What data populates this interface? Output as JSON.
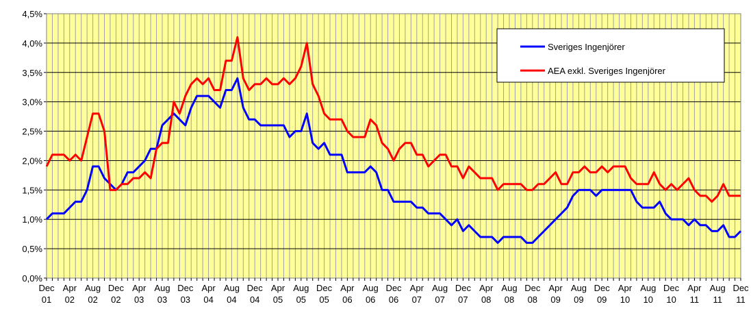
{
  "chart_data": {
    "type": "line",
    "categories": [
      "Dec 01",
      null,
      null,
      null,
      "Apr 02",
      null,
      null,
      null,
      "Aug 02",
      null,
      null,
      null,
      "Dec 02",
      null,
      null,
      null,
      "Apr 03",
      null,
      null,
      null,
      "Aug 03",
      null,
      null,
      null,
      "Dec 03",
      null,
      null,
      null,
      "Apr 04",
      null,
      null,
      null,
      "Aug 04",
      null,
      null,
      null,
      "Dec 04",
      null,
      null,
      null,
      "Apr 05",
      null,
      null,
      null,
      "Aug 05",
      null,
      null,
      null,
      "Dec 05",
      null,
      null,
      null,
      "Apr 06",
      null,
      null,
      null,
      "Aug 06",
      null,
      null,
      null,
      "Dec 06",
      null,
      null,
      null,
      "Apr 07",
      null,
      null,
      null,
      "Aug 07",
      null,
      null,
      null,
      "Dec 07",
      null,
      null,
      null,
      "Apr 08",
      null,
      null,
      null,
      "Aug 08",
      null,
      null,
      null,
      "Dec 08",
      null,
      null,
      null,
      "Apr 09",
      null,
      null,
      null,
      "Aug 09",
      null,
      null,
      null,
      "Dec 09",
      null,
      null,
      null,
      "Apr 10",
      null,
      null,
      null,
      "Aug 10",
      null,
      null,
      null,
      "Dec 10",
      null,
      null,
      null,
      "Apr 11",
      null,
      null,
      null,
      "Aug 11",
      null,
      null,
      null,
      "Dec 11"
    ],
    "series": [
      {
        "name": "Sveriges Ingenjörer",
        "color": "#0000ff",
        "values": [
          1.0,
          1.1,
          1.1,
          1.1,
          1.2,
          1.3,
          1.3,
          1.5,
          1.9,
          1.9,
          1.7,
          1.6,
          1.5,
          1.6,
          1.8,
          1.8,
          1.9,
          2.0,
          2.2,
          2.2,
          2.6,
          2.7,
          2.8,
          2.7,
          2.6,
          2.9,
          3.1,
          3.1,
          3.1,
          3.0,
          2.9,
          3.2,
          3.2,
          3.4,
          2.9,
          2.7,
          2.7,
          2.6,
          2.6,
          2.6,
          2.6,
          2.6,
          2.4,
          2.5,
          2.5,
          2.8,
          2.3,
          2.2,
          2.3,
          2.1,
          2.1,
          2.1,
          1.8,
          1.8,
          1.8,
          1.8,
          1.9,
          1.8,
          1.5,
          1.5,
          1.3,
          1.3,
          1.3,
          1.3,
          1.2,
          1.2,
          1.1,
          1.1,
          1.1,
          1.0,
          0.9,
          1.0,
          0.8,
          0.9,
          0.8,
          0.7,
          0.7,
          0.7,
          0.6,
          0.7,
          0.7,
          0.7,
          0.7,
          0.6,
          0.6,
          0.7,
          0.8,
          0.9,
          1.0,
          1.1,
          1.2,
          1.4,
          1.5,
          1.5,
          1.5,
          1.4,
          1.5,
          1.5,
          1.5,
          1.5,
          1.5,
          1.5,
          1.3,
          1.2,
          1.2,
          1.2,
          1.3,
          1.1,
          1.0,
          1.0,
          1.0,
          0.9,
          1.0,
          0.9,
          0.9,
          0.8,
          0.8,
          0.9,
          0.7,
          0.7,
          0.8
        ]
      },
      {
        "name": "AEA exkl. Sveriges Ingenjörer",
        "color": "#ff0000",
        "values": [
          1.9,
          2.1,
          2.1,
          2.1,
          2.0,
          2.1,
          2.0,
          2.4,
          2.8,
          2.8,
          2.5,
          1.5,
          1.5,
          1.6,
          1.6,
          1.7,
          1.7,
          1.8,
          1.7,
          2.2,
          2.3,
          2.3,
          3.0,
          2.8,
          3.1,
          3.3,
          3.4,
          3.3,
          3.4,
          3.2,
          3.2,
          3.7,
          3.7,
          4.1,
          3.4,
          3.2,
          3.3,
          3.3,
          3.4,
          3.3,
          3.3,
          3.4,
          3.3,
          3.4,
          3.6,
          4.0,
          3.3,
          3.1,
          2.8,
          2.7,
          2.7,
          2.7,
          2.5,
          2.4,
          2.4,
          2.4,
          2.7,
          2.6,
          2.3,
          2.2,
          2.0,
          2.2,
          2.3,
          2.3,
          2.1,
          2.1,
          1.9,
          2.0,
          2.1,
          2.1,
          1.9,
          1.9,
          1.7,
          1.9,
          1.8,
          1.7,
          1.7,
          1.7,
          1.5,
          1.6,
          1.6,
          1.6,
          1.6,
          1.5,
          1.5,
          1.6,
          1.6,
          1.7,
          1.8,
          1.6,
          1.6,
          1.8,
          1.8,
          1.9,
          1.8,
          1.8,
          1.9,
          1.8,
          1.9,
          1.9,
          1.9,
          1.7,
          1.6,
          1.6,
          1.6,
          1.8,
          1.6,
          1.5,
          1.6,
          1.5,
          1.6,
          1.7,
          1.5,
          1.4,
          1.4,
          1.3,
          1.4,
          1.6,
          1.4,
          1.4,
          1.4
        ]
      }
    ],
    "ylim": [
      0,
      4.5
    ],
    "yticks": [
      {
        "value": 0,
        "label": "0,0%"
      },
      {
        "value": 0.5,
        "label": "0,5%"
      },
      {
        "value": 1,
        "label": "1,0%"
      },
      {
        "value": 1.5,
        "label": "1,5%"
      },
      {
        "value": 2,
        "label": "2,0%"
      },
      {
        "value": 2.5,
        "label": "2,5%"
      },
      {
        "value": 3,
        "label": "3,0%"
      },
      {
        "value": 3.5,
        "label": "3,5%"
      },
      {
        "value": 4,
        "label": "4,0%"
      },
      {
        "value": 4.5,
        "label": "4,5%"
      }
    ],
    "grid": true,
    "legend": "top-right"
  }
}
